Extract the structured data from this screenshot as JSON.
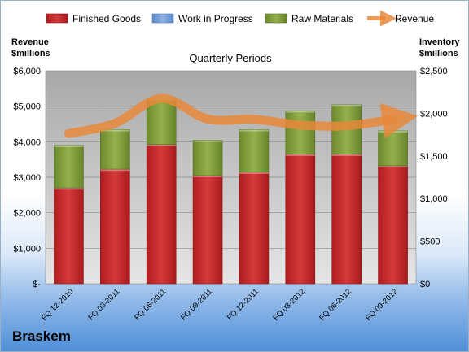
{
  "chart_data": {
    "type": "bar",
    "stacked": true,
    "subtitle": "Quarterly Periods",
    "company": "Braskem",
    "categories": [
      "FQ 12-2010",
      "FQ 03-2011",
      "FQ 06-2011",
      "FQ 09-2011",
      "FQ 12-2011",
      "FQ 03-2012",
      "FQ 06-2012",
      "FQ 09-2012"
    ],
    "left_axis": {
      "label_line1": "Revenue",
      "label_line2": "$millions",
      "ticks": [
        "$6,000",
        "$5,000",
        "$4,000",
        "$3,000",
        "$2,000",
        "$1,000",
        "$-"
      ],
      "ylim": [
        0,
        6000
      ]
    },
    "right_axis": {
      "label_line1": "Inventory",
      "label_line2": "$millions",
      "ticks": [
        "$2,500",
        "$2,000",
        "$1,500",
        "$1,000",
        "$500",
        "$0"
      ],
      "ylim": [
        0,
        2500
      ]
    },
    "series": [
      {
        "name": "Finished Goods",
        "axis": "right",
        "color": "#c0282a",
        "values": [
          1125,
          1345,
          1635,
          1270,
          1310,
          1520,
          1520,
          1385
        ]
      },
      {
        "name": "Work in Progress",
        "axis": "right",
        "color": "#6f9bd6",
        "values": [
          0,
          0,
          0,
          0,
          0,
          0,
          0,
          0
        ]
      },
      {
        "name": "Raw Materials",
        "axis": "right",
        "color": "#7f9a3a",
        "values": [
          500,
          465,
          540,
          415,
          500,
          510,
          580,
          410
        ]
      },
      {
        "name": "Revenue",
        "axis": "left",
        "type": "line",
        "color": "#e8883a",
        "values": [
          4230,
          4520,
          5220,
          4640,
          4630,
          4470,
          4450,
          4630
        ]
      }
    ],
    "grid": true,
    "legend_position": "top"
  }
}
